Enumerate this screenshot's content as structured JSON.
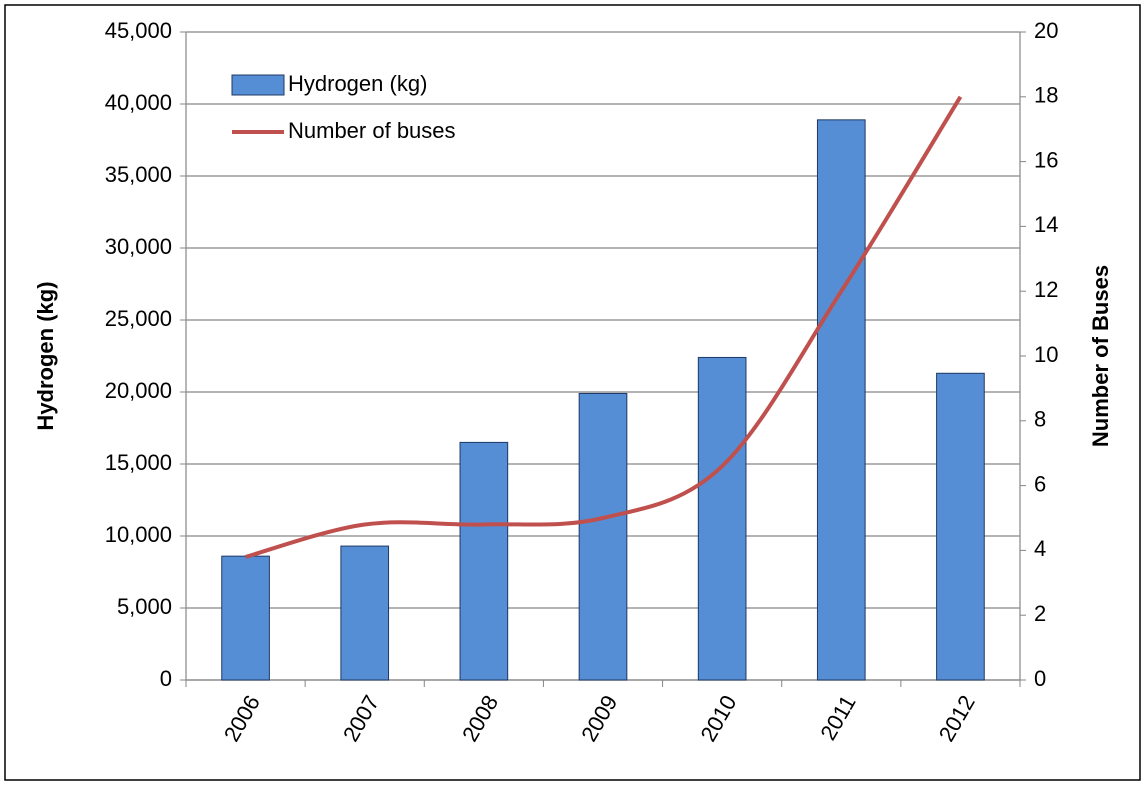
{
  "chart_data": {
    "type": "bar_line",
    "categories": [
      "2006",
      "2007",
      "2008",
      "2009",
      "2010",
      "2011",
      "2012"
    ],
    "series": [
      {
        "name": "Hydrogen (kg)",
        "type": "bar",
        "color": "#558ed5",
        "values": [
          8600,
          9300,
          16500,
          19900,
          22400,
          38900,
          21300
        ]
      },
      {
        "name": "Number of buses",
        "type": "line",
        "axis": "y2",
        "color": "#c0504d",
        "values": [
          3.8,
          4.8,
          4.8,
          5,
          6.6,
          12,
          18
        ]
      }
    ],
    "ylabel": "Hydrogen (kg)",
    "y2label": "Number of Buses",
    "ylim": [
      0,
      45000
    ],
    "yticks": [
      0,
      {
        "value": 5000,
        "label": "5,000"
      },
      {
        "value": 10000,
        "label": "10,000"
      },
      {
        "value": 15000,
        "label": "15,000"
      },
      {
        "value": 20000,
        "label": "20,000"
      },
      {
        "value": 25000,
        "label": "25,000"
      },
      {
        "value": 30000,
        "label": "30,000"
      },
      {
        "value": 35000,
        "label": "35,000"
      },
      {
        "value": 40000,
        "label": "40,000"
      },
      {
        "value": 45000,
        "label": "45,000"
      }
    ],
    "y2lim": [
      0,
      20
    ],
    "y2ticks": [
      0,
      2,
      4,
      6,
      8,
      10,
      12,
      14,
      16,
      18,
      20
    ],
    "grid": true,
    "legend": "upper left"
  }
}
